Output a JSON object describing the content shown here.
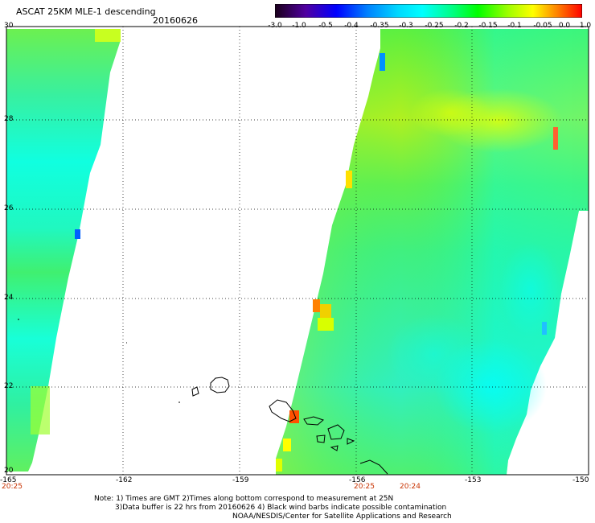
{
  "header": {
    "title": "ASCAT 25KM MLE-1 descending",
    "date": "20160626"
  },
  "colorbar": {
    "labels": [
      "-3.0",
      "-1.0",
      "-0.5",
      "-0.4",
      "-0.35",
      "-0.3",
      "-0.25",
      "-0.2",
      "-0.15",
      "-0.1",
      "-0.05",
      "0.0",
      "1.0"
    ],
    "colors": [
      "#1a001a",
      "#6a00a8",
      "#0000ff",
      "#0080ff",
      "#00c8ff",
      "#00ffff",
      "#00ff80",
      "#00ff00",
      "#80ff00",
      "#ffff00",
      "#ff8000",
      "#ff0000"
    ]
  },
  "axes": {
    "lat_labels": [
      "30",
      "28",
      "26",
      "24",
      "22",
      "20"
    ],
    "lon_labels": [
      "-165",
      "-162",
      "-159",
      "-156",
      "-153",
      "-150"
    ]
  },
  "time_labels": [
    "20:25",
    "20:25",
    "20:24"
  ],
  "notes": {
    "line1": "Note: 1) Times are GMT 2)Times along bottom correspond to measurement at 25N",
    "line2": "3)Data buffer is 22 hrs from 20160626 4) Black wind barbs indicate possible contamination",
    "line3": "NOAA/NESDIS/Center for Satellite Applications and Research"
  },
  "colors": {
    "swath_base": "#3cf060",
    "swath_cyan": "#00ffe0",
    "swath_yellow": "#d8ff00",
    "grid": "#000000"
  }
}
